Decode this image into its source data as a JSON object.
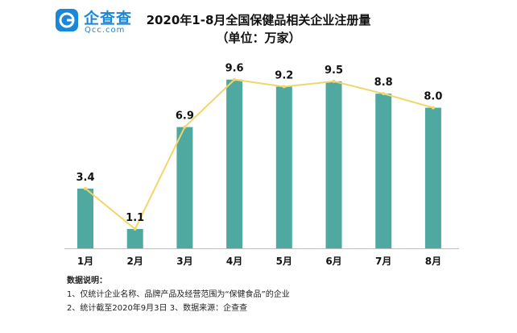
{
  "logo": {
    "name": "企查查",
    "sub": "Qcc.com",
    "color": "#1a87d8"
  },
  "chart_data": {
    "type": "bar",
    "title": "2020年1-8月全国保健品相关企业注册量",
    "subtitle": "（单位：万家）",
    "categories": [
      "1月",
      "2月",
      "3月",
      "4月",
      "5月",
      "6月",
      "7月",
      "8月"
    ],
    "values": [
      3.4,
      1.1,
      6.9,
      9.6,
      9.2,
      9.5,
      8.8,
      8.0
    ],
    "data_labels": [
      "3.4",
      "1.1",
      "6.9",
      "9.6",
      "9.2",
      "9.5",
      "8.8",
      "8.0"
    ],
    "overlay_line": true,
    "ylim": [
      0,
      10
    ],
    "grid": false,
    "colors": {
      "bar": "#4fa9a1",
      "line": "#f1d66a",
      "axis": "#bfbfbf"
    }
  },
  "notes": {
    "heading": "数据说明：",
    "line1": "1、仅统计企业名称、品牌产品及经营范围为“保健食品”的企业",
    "line2": "2、统计截至2020年9月3日    3、数据来源：企查查"
  }
}
